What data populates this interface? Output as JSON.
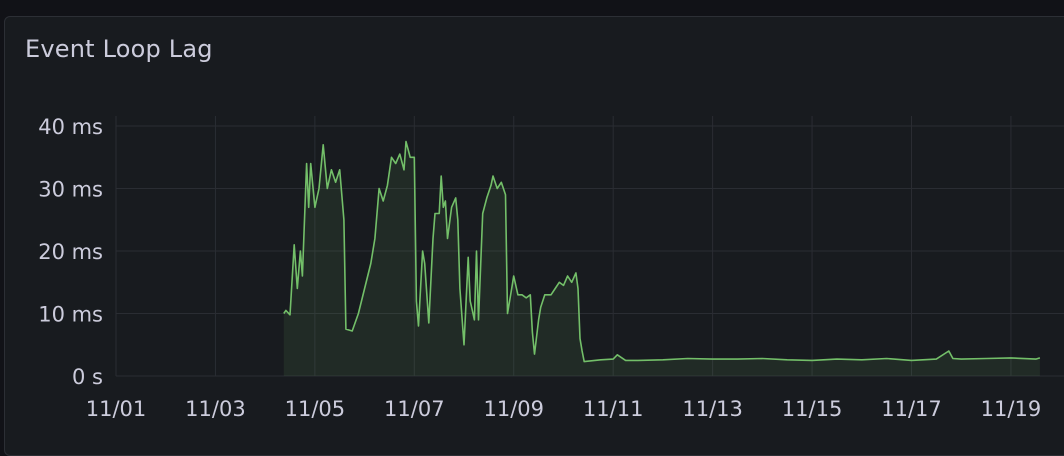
{
  "panel": {
    "title": "Event Loop Lag"
  },
  "chart_data": {
    "type": "area",
    "title": "Event Loop Lag",
    "xlabel": "",
    "ylabel": "",
    "y_unit": "ms",
    "ylim": [
      0,
      40
    ],
    "y_ticks": [
      {
        "value": 0,
        "label": "0 s"
      },
      {
        "value": 10,
        "label": "10 ms"
      },
      {
        "value": 20,
        "label": "20 ms"
      },
      {
        "value": 30,
        "label": "30 ms"
      },
      {
        "value": 40,
        "label": "40 ms"
      }
    ],
    "xlim": [
      "11/01",
      "11/19 15:00"
    ],
    "x_ticks": [
      "11/01",
      "11/03",
      "11/05",
      "11/07",
      "11/09",
      "11/11",
      "11/13",
      "11/15",
      "11/17",
      "11/19"
    ],
    "grid": true,
    "legend": false,
    "series": [
      {
        "color": "#73bf69",
        "points": [
          [
            "11/04 09:00",
            10.0
          ],
          [
            "11/04 10:00",
            10.5
          ],
          [
            "11/04 12:00",
            9.8
          ],
          [
            "11/04 14:00",
            21.0
          ],
          [
            "11/04 15:30",
            14.0
          ],
          [
            "11/04 17:00",
            20.0
          ],
          [
            "11/04 18:00",
            16.0
          ],
          [
            "11/04 20:00",
            34.0
          ],
          [
            "11/04 21:00",
            27.0
          ],
          [
            "11/04 22:00",
            34.0
          ],
          [
            "11/05 00:00",
            27.0
          ],
          [
            "11/05 02:00",
            30.0
          ],
          [
            "11/05 04:00",
            37.0
          ],
          [
            "11/05 06:00",
            30.0
          ],
          [
            "11/05 08:00",
            33.0
          ],
          [
            "11/05 10:00",
            31.0
          ],
          [
            "11/05 12:00",
            33.0
          ],
          [
            "11/05 14:00",
            25.0
          ],
          [
            "11/05 15:00",
            7.5
          ],
          [
            "11/05 18:00",
            7.2
          ],
          [
            "11/05 21:00",
            10.0
          ],
          [
            "11/06 00:00",
            14.0
          ],
          [
            "11/06 03:00",
            18.0
          ],
          [
            "11/06 05:00",
            22.0
          ],
          [
            "11/06 07:00",
            30.0
          ],
          [
            "11/06 09:00",
            28.0
          ],
          [
            "11/06 11:00",
            30.5
          ],
          [
            "11/06 13:00",
            35.0
          ],
          [
            "11/06 15:00",
            34.0
          ],
          [
            "11/06 17:00",
            35.5
          ],
          [
            "11/06 19:00",
            33.0
          ],
          [
            "11/06 20:00",
            37.5
          ],
          [
            "11/06 22:00",
            35.0
          ],
          [
            "11/07 00:00",
            35.0
          ],
          [
            "11/07 01:00",
            12.0
          ],
          [
            "11/07 02:00",
            8.0
          ],
          [
            "11/07 04:00",
            20.0
          ],
          [
            "11/07 05:00",
            18.0
          ],
          [
            "11/07 07:00",
            8.5
          ],
          [
            "11/07 09:00",
            22.0
          ],
          [
            "11/07 10:00",
            26.0
          ],
          [
            "11/07 12:00",
            26.0
          ],
          [
            "11/07 13:00",
            32.0
          ],
          [
            "11/07 14:00",
            27.0
          ],
          [
            "11/07 15:00",
            28.0
          ],
          [
            "11/07 16:00",
            22.0
          ],
          [
            "11/07 18:00",
            27.0
          ],
          [
            "11/07 20:00",
            28.5
          ],
          [
            "11/07 21:00",
            25.0
          ],
          [
            "11/07 22:00",
            14.0
          ],
          [
            "11/08 00:00",
            5.0
          ],
          [
            "11/08 02:00",
            19.0
          ],
          [
            "11/08 03:00",
            12.0
          ],
          [
            "11/08 05:00",
            9.0
          ],
          [
            "11/08 06:00",
            20.0
          ],
          [
            "11/08 07:00",
            9.0
          ],
          [
            "11/08 09:00",
            26.0
          ],
          [
            "11/08 11:00",
            28.5
          ],
          [
            "11/08 13:00",
            30.5
          ],
          [
            "11/08 14:00",
            32.0
          ],
          [
            "11/08 16:00",
            30.0
          ],
          [
            "11/08 18:00",
            31.0
          ],
          [
            "11/08 20:00",
            29.0
          ],
          [
            "11/08 21:00",
            10.0
          ],
          [
            "11/08 23:00",
            14.0
          ],
          [
            "11/09 00:00",
            16.0
          ],
          [
            "11/09 02:00",
            13.0
          ],
          [
            "11/09 04:00",
            13.0
          ],
          [
            "11/09 06:00",
            12.5
          ],
          [
            "11/09 08:00",
            13.0
          ],
          [
            "11/09 09:00",
            7.0
          ],
          [
            "11/09 10:00",
            3.5
          ],
          [
            "11/09 12:00",
            9.0
          ],
          [
            "11/09 13:00",
            11.0
          ],
          [
            "11/09 15:00",
            13.0
          ],
          [
            "11/09 18:00",
            13.0
          ],
          [
            "11/09 20:00",
            14.0
          ],
          [
            "11/09 22:00",
            15.0
          ],
          [
            "11/10 00:00",
            14.5
          ],
          [
            "11/10 02:00",
            16.0
          ],
          [
            "11/10 04:00",
            15.0
          ],
          [
            "11/10 06:00",
            16.5
          ],
          [
            "11/10 07:00",
            14.0
          ],
          [
            "11/10 08:00",
            6.0
          ],
          [
            "11/10 09:00",
            4.0
          ],
          [
            "11/10 10:00",
            2.3
          ],
          [
            "11/10 18:00",
            2.6
          ],
          [
            "11/11 00:00",
            2.7
          ],
          [
            "11/11 02:00",
            3.4
          ],
          [
            "11/11 06:00",
            2.5
          ],
          [
            "11/11 12:00",
            2.5
          ],
          [
            "11/12 00:00",
            2.6
          ],
          [
            "11/12 12:00",
            2.8
          ],
          [
            "11/13 00:00",
            2.7
          ],
          [
            "11/13 12:00",
            2.7
          ],
          [
            "11/14 00:00",
            2.8
          ],
          [
            "11/14 12:00",
            2.6
          ],
          [
            "11/15 00:00",
            2.5
          ],
          [
            "11/15 12:00",
            2.7
          ],
          [
            "11/16 00:00",
            2.6
          ],
          [
            "11/16 12:00",
            2.8
          ],
          [
            "11/17 00:00",
            2.5
          ],
          [
            "11/17 12:00",
            2.7
          ],
          [
            "11/17 18:00",
            4.0
          ],
          [
            "11/17 20:00",
            2.8
          ],
          [
            "11/18 00:00",
            2.7
          ],
          [
            "11/18 12:00",
            2.8
          ],
          [
            "11/19 00:00",
            2.9
          ],
          [
            "11/19 12:00",
            2.7
          ],
          [
            "11/19 14:00",
            2.9
          ]
        ]
      }
    ]
  }
}
